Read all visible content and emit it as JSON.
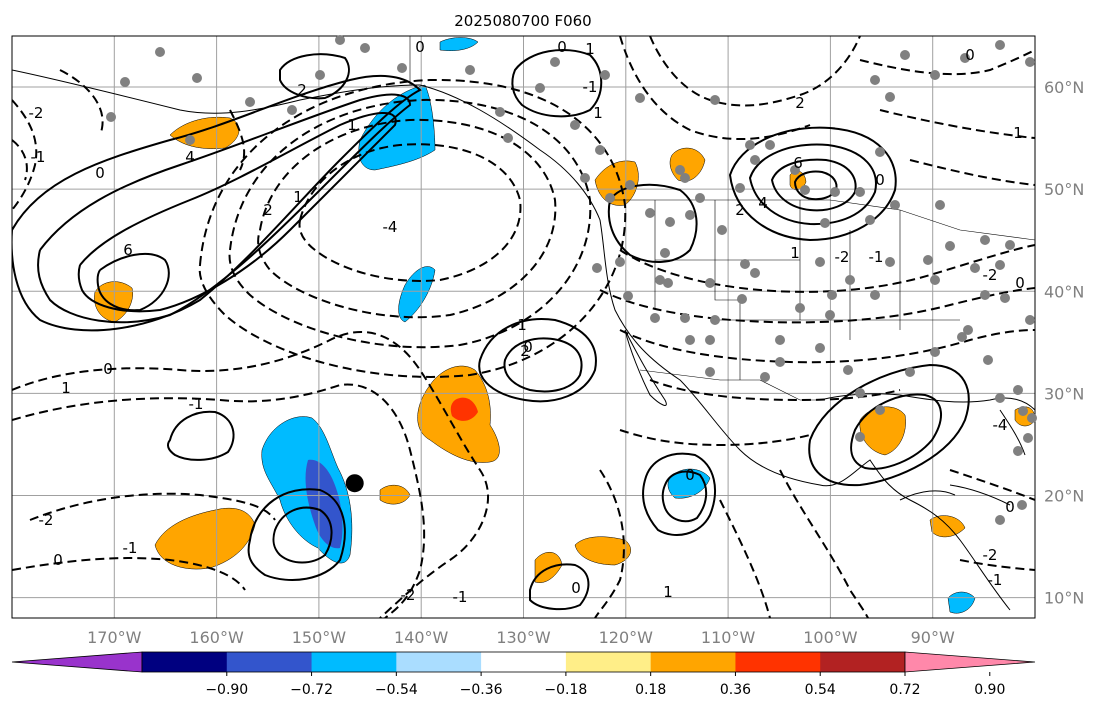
{
  "title": "2025080700 F060",
  "map": {
    "lon_range": [
      -180,
      -80
    ],
    "lat_range": [
      8,
      65
    ],
    "lat_ticks": [
      {
        "value": 60,
        "label": "60°N"
      },
      {
        "value": 50,
        "label": "50°N"
      },
      {
        "value": 40,
        "label": "40°N"
      },
      {
        "value": 30,
        "label": "30°N"
      },
      {
        "value": 20,
        "label": "20°N"
      },
      {
        "value": 10,
        "label": "10°N"
      }
    ],
    "lon_ticks": [
      {
        "value": -170,
        "label": "170°W"
      },
      {
        "value": -160,
        "label": "160°W"
      },
      {
        "value": -150,
        "label": "150°W"
      },
      {
        "value": -140,
        "label": "140°W"
      },
      {
        "value": -130,
        "label": "130°W"
      },
      {
        "value": -120,
        "label": "120°W"
      },
      {
        "value": -110,
        "label": "110°W"
      },
      {
        "value": -100,
        "label": "100°W"
      },
      {
        "value": -90,
        "label": "90°W"
      }
    ],
    "grid": true,
    "marker": {
      "lon": -146.5,
      "lat": 21.2,
      "color": "#000000"
    }
  },
  "colorbar": {
    "colors": [
      "#9933cc",
      "#000080",
      "#3355cc",
      "#00bbff",
      "#aaddff",
      "#ffffff",
      "#ffee88",
      "#ffa500",
      "#ff3300",
      "#b22222",
      "#ff88aa"
    ],
    "tick_labels": [
      "−0.90",
      "−0.72",
      "−0.54",
      "−0.36",
      "−0.18",
      "0.18",
      "0.36",
      "0.54",
      "0.72",
      "0.90"
    ],
    "extend": "both"
  },
  "contour_labels": [
    "6",
    "4",
    "2",
    "1",
    "0",
    "-1",
    "-2",
    "-4",
    "1",
    "2",
    "1",
    "0",
    "-1",
    "6",
    "4",
    "2",
    "1",
    "-2",
    "-1",
    "0",
    "0",
    "1",
    "-1",
    "1",
    "0",
    "2",
    "-2",
    "-1",
    "0",
    "-2",
    "-1",
    "0",
    "1",
    "0",
    "-2",
    "-1",
    "0",
    "-4",
    "-2",
    "0",
    "1",
    "0",
    "0",
    "1",
    "2"
  ]
}
